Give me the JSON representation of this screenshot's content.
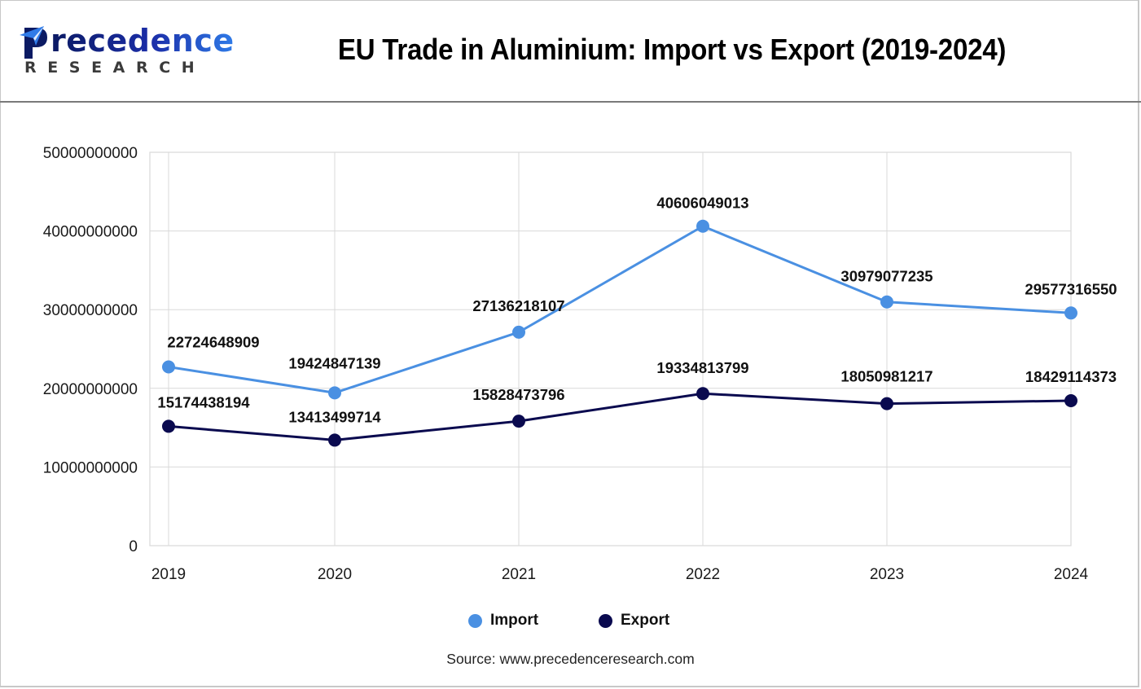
{
  "header": {
    "logo": {
      "word": "recedence",
      "initial": "P",
      "sub": "RESEARCH"
    },
    "title": "EU Trade in Aluminium: Import vs Export (2019-2024)"
  },
  "legend": {
    "items": [
      {
        "label": "Import",
        "color": "#4a90e2"
      },
      {
        "label": "Export",
        "color": "#0a0a4f"
      }
    ]
  },
  "source": "Source: www.precedenceresearch.com",
  "colors": {
    "import": "#4a90e2",
    "export": "#0a0a4f",
    "grid": "#d9d9d9",
    "header_rule": "#7a7a7a"
  },
  "chart_data": {
    "type": "line",
    "title": "EU Trade in Aluminium: Import vs Export (2019-2024)",
    "xlabel": "",
    "ylabel": "",
    "categories": [
      "2019",
      "2020",
      "2021",
      "2022",
      "2023",
      "2024"
    ],
    "series": [
      {
        "name": "Import",
        "color": "#4a90e2",
        "values": [
          22724648909,
          19424847139,
          27136218107,
          40606049013,
          30979077235,
          29577316550
        ]
      },
      {
        "name": "Export",
        "color": "#0a0a4f",
        "values": [
          15174438194,
          13413499714,
          15828473796,
          19334813799,
          18050981217,
          18429114373
        ]
      }
    ],
    "yticks": [
      "0",
      "10000000000",
      "20000000000",
      "30000000000",
      "40000000000",
      "50000000000"
    ],
    "ylim": [
      0,
      50000000000
    ],
    "grid": true,
    "legend_position": "bottom",
    "data_labels": true
  }
}
